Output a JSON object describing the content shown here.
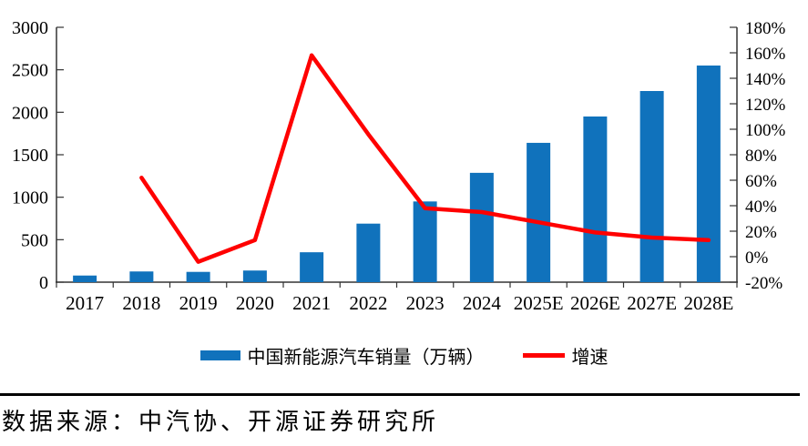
{
  "chart_data": {
    "type": "bar+line combo",
    "title": "",
    "categories": [
      "2017",
      "2018",
      "2019",
      "2020",
      "2021",
      "2022",
      "2023",
      "2024",
      "2025E",
      "2026E",
      "2027E",
      "2028E"
    ],
    "series": [
      {
        "name": "中国新能源汽车销量（万辆）",
        "type": "bar",
        "axis": "left",
        "color": "#1072BC",
        "values": [
          78,
          126,
          121,
          137,
          352,
          689,
          950,
          1287,
          1640,
          1950,
          2250,
          2550
        ]
      },
      {
        "name": "增速",
        "type": "line",
        "axis": "right",
        "color": "#FF0000",
        "values": [
          null,
          62,
          -4,
          13,
          158,
          96,
          38,
          35,
          27,
          19,
          15,
          13
        ]
      }
    ],
    "left_axis": {
      "min": 0,
      "max": 3000,
      "step": 500,
      "tick_labels": [
        "0",
        "500",
        "1000",
        "1500",
        "2000",
        "2500",
        "3000"
      ]
    },
    "right_axis": {
      "min": -20,
      "max": 180,
      "step": 20,
      "tick_labels": [
        "-20%",
        "0%",
        "20%",
        "40%",
        "60%",
        "80%",
        "100%",
        "120%",
        "140%",
        "160%",
        "180%"
      ]
    },
    "grid": false,
    "legend_position": "bottom"
  },
  "source_note": "数据来源：中汽协、开源证券研究所",
  "colors": {
    "bar": "#1072BC",
    "line": "#FF0000",
    "axis": "#333333",
    "text": "#000000"
  }
}
